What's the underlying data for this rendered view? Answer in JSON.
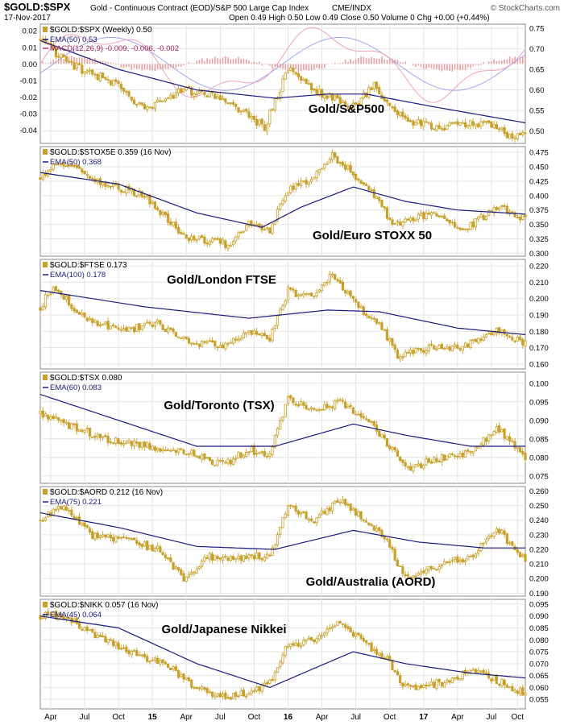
{
  "header": {
    "symbol": "$GOLD:$SPX",
    "description": "Gold - Continuous Contract (EOD)/S&P 500 Large Cap Index",
    "exchange": "CME/INDX",
    "brand": "© StockCharts.com",
    "date": "17-Nov-2017",
    "quote": "Open 0.49  High 0.50  Low 0.49  Close 0.50  Volume 0  Chg +0.00 (+0.44%)"
  },
  "colors": {
    "price": "#c8a02a",
    "ema": "#1a1a80",
    "macd_hist": "#e8a0a0",
    "macd_line": "#f0a0c0",
    "signal_line": "#a0a8e8",
    "grid": "#e4e4e4"
  },
  "x_axis": {
    "labels": [
      "Apr",
      "Jul",
      "Oct",
      "15",
      "Apr",
      "Jul",
      "Oct",
      "16",
      "Apr",
      "Jul",
      "Oct",
      "17",
      "Apr",
      "Jul",
      "Oct"
    ],
    "bold": [
      "15",
      "16",
      "17"
    ]
  },
  "chart_data": [
    {
      "type": "candlestick",
      "legend": "$GOLD:$SPX (Weekly) 0.50",
      "ema_label": "EMA(50) 0.53",
      "macd_label": "MACD(12,26,9) -0.009, -0.006, -0.002",
      "annotation": "Gold/S&P500",
      "ylim": [
        0.47,
        0.76
      ],
      "yticks": [
        "0.75",
        "0.70",
        "0.65",
        "0.60",
        "0.55",
        "0.50"
      ],
      "left_ticks": [
        "0.02",
        "0.01",
        "0.00",
        "-0.01",
        "-0.02",
        "-0.03",
        "-0.04"
      ],
      "anchors": [
        [
          0,
          0.72
        ],
        [
          12,
          0.66
        ],
        [
          28,
          0.62
        ],
        [
          40,
          0.55
        ],
        [
          55,
          0.6
        ],
        [
          70,
          0.58
        ],
        [
          86,
          0.51
        ],
        [
          95,
          0.65
        ],
        [
          105,
          0.6
        ],
        [
          120,
          0.56
        ],
        [
          128,
          0.61
        ],
        [
          139,
          0.53
        ],
        [
          150,
          0.51
        ],
        [
          170,
          0.52
        ],
        [
          180,
          0.49
        ],
        [
          186,
          0.495
        ]
      ],
      "ema": [
        [
          0,
          0.72
        ],
        [
          30,
          0.65
        ],
        [
          60,
          0.6
        ],
        [
          90,
          0.58
        ],
        [
          110,
          0.59
        ],
        [
          125,
          0.59
        ],
        [
          150,
          0.56
        ],
        [
          186,
          0.52
        ]
      ]
    },
    {
      "type": "candlestick",
      "legend": "$GOLD:$STOX5E 0.359 (16 Nov)",
      "ema_label": "EMA(50) 0.368",
      "annotation": "Gold/Euro STOXX 50",
      "ylim": [
        0.295,
        0.485
      ],
      "yticks": [
        "0.475",
        "0.450",
        "0.425",
        "0.400",
        "0.375",
        "0.350",
        "0.325",
        "0.300"
      ],
      "anchors": [
        [
          0,
          0.43
        ],
        [
          8,
          0.46
        ],
        [
          25,
          0.42
        ],
        [
          40,
          0.4
        ],
        [
          55,
          0.33
        ],
        [
          72,
          0.315
        ],
        [
          80,
          0.35
        ],
        [
          88,
          0.34
        ],
        [
          95,
          0.41
        ],
        [
          105,
          0.43
        ],
        [
          112,
          0.47
        ],
        [
          122,
          0.43
        ],
        [
          128,
          0.4
        ],
        [
          135,
          0.35
        ],
        [
          150,
          0.37
        ],
        [
          162,
          0.34
        ],
        [
          175,
          0.38
        ],
        [
          186,
          0.36
        ]
      ],
      "ema": [
        [
          0,
          0.44
        ],
        [
          30,
          0.42
        ],
        [
          60,
          0.37
        ],
        [
          85,
          0.345
        ],
        [
          100,
          0.38
        ],
        [
          120,
          0.415
        ],
        [
          140,
          0.39
        ],
        [
          160,
          0.375
        ],
        [
          186,
          0.368
        ]
      ]
    },
    {
      "type": "candlestick",
      "legend": "$GOLD:$FTSE 0.173",
      "ema_label": "EMA(100) 0.178",
      "annotation": "Gold/London FTSE",
      "ylim": [
        0.157,
        0.224
      ],
      "yticks": [
        "0.220",
        "0.210",
        "0.200",
        "0.190",
        "0.180",
        "0.170",
        "0.160"
      ],
      "anchors": [
        [
          0,
          0.195
        ],
        [
          5,
          0.208
        ],
        [
          15,
          0.19
        ],
        [
          30,
          0.18
        ],
        [
          45,
          0.185
        ],
        [
          55,
          0.175
        ],
        [
          70,
          0.17
        ],
        [
          80,
          0.18
        ],
        [
          88,
          0.175
        ],
        [
          95,
          0.205
        ],
        [
          105,
          0.2
        ],
        [
          112,
          0.215
        ],
        [
          122,
          0.195
        ],
        [
          130,
          0.185
        ],
        [
          137,
          0.165
        ],
        [
          150,
          0.17
        ],
        [
          160,
          0.17
        ],
        [
          175,
          0.18
        ],
        [
          186,
          0.172
        ]
      ],
      "ema": [
        [
          0,
          0.205
        ],
        [
          40,
          0.195
        ],
        [
          80,
          0.188
        ],
        [
          110,
          0.193
        ],
        [
          130,
          0.192
        ],
        [
          160,
          0.182
        ],
        [
          186,
          0.178
        ]
      ]
    },
    {
      "type": "candlestick",
      "legend": "$GOLD:$TSX 0.080",
      "ema_label": "EMA(60) 0.083",
      "annotation": "Gold/Toronto (TSX)",
      "ylim": [
        0.073,
        0.103
      ],
      "yticks": [
        "0.100",
        "0.095",
        "0.090",
        "0.085",
        "0.080",
        "0.075"
      ],
      "anchors": [
        [
          0,
          0.092
        ],
        [
          10,
          0.089
        ],
        [
          25,
          0.085
        ],
        [
          40,
          0.083
        ],
        [
          55,
          0.082
        ],
        [
          70,
          0.078
        ],
        [
          80,
          0.082
        ],
        [
          88,
          0.081
        ],
        [
          95,
          0.096
        ],
        [
          105,
          0.092
        ],
        [
          115,
          0.095
        ],
        [
          125,
          0.09
        ],
        [
          133,
          0.084
        ],
        [
          140,
          0.077
        ],
        [
          155,
          0.08
        ],
        [
          165,
          0.081
        ],
        [
          175,
          0.088
        ],
        [
          186,
          0.08
        ]
      ],
      "ema": [
        [
          0,
          0.097
        ],
        [
          30,
          0.09
        ],
        [
          60,
          0.083
        ],
        [
          90,
          0.083
        ],
        [
          120,
          0.089
        ],
        [
          140,
          0.086
        ],
        [
          165,
          0.083
        ],
        [
          186,
          0.083
        ]
      ]
    },
    {
      "type": "candlestick",
      "legend": "$GOLD:$AORD 0.212 (16 Nov)",
      "ema_label": "EMA(75) 0.221",
      "annotation": "Gold/Australia (AORD)",
      "ylim": [
        0.188,
        0.263
      ],
      "yticks": [
        "0.260",
        "0.250",
        "0.240",
        "0.230",
        "0.220",
        "0.210",
        "0.200",
        "0.190"
      ],
      "anchors": [
        [
          0,
          0.24
        ],
        [
          8,
          0.25
        ],
        [
          20,
          0.23
        ],
        [
          35,
          0.225
        ],
        [
          45,
          0.22
        ],
        [
          55,
          0.2
        ],
        [
          65,
          0.215
        ],
        [
          75,
          0.215
        ],
        [
          88,
          0.215
        ],
        [
          95,
          0.25
        ],
        [
          105,
          0.24
        ],
        [
          115,
          0.255
        ],
        [
          125,
          0.24
        ],
        [
          133,
          0.225
        ],
        [
          140,
          0.2
        ],
        [
          155,
          0.21
        ],
        [
          165,
          0.215
        ],
        [
          175,
          0.235
        ],
        [
          186,
          0.212
        ]
      ],
      "ema": [
        [
          0,
          0.245
        ],
        [
          30,
          0.235
        ],
        [
          60,
          0.222
        ],
        [
          90,
          0.22
        ],
        [
          120,
          0.233
        ],
        [
          145,
          0.225
        ],
        [
          170,
          0.221
        ],
        [
          186,
          0.221
        ]
      ]
    },
    {
      "type": "candlestick",
      "legend": "$GOLD:$NIKK 0.057 (16 Nov)",
      "ema_label": "EMA(45) 0.064",
      "annotation": "Gold/Japanese Nikkei",
      "ylim": [
        0.051,
        0.097
      ],
      "yticks": [
        "0.095",
        "0.090",
        "0.085",
        "0.080",
        "0.075",
        "0.070",
        "0.065",
        "0.060",
        "0.055"
      ],
      "anchors": [
        [
          0,
          0.09
        ],
        [
          10,
          0.09
        ],
        [
          20,
          0.082
        ],
        [
          35,
          0.075
        ],
        [
          50,
          0.068
        ],
        [
          60,
          0.06
        ],
        [
          70,
          0.056
        ],
        [
          80,
          0.058
        ],
        [
          88,
          0.062
        ],
        [
          95,
          0.078
        ],
        [
          105,
          0.08
        ],
        [
          115,
          0.088
        ],
        [
          125,
          0.078
        ],
        [
          133,
          0.072
        ],
        [
          140,
          0.06
        ],
        [
          155,
          0.062
        ],
        [
          165,
          0.067
        ],
        [
          175,
          0.063
        ],
        [
          186,
          0.057
        ]
      ],
      "ema": [
        [
          0,
          0.09
        ],
        [
          30,
          0.085
        ],
        [
          60,
          0.07
        ],
        [
          88,
          0.06
        ],
        [
          105,
          0.068
        ],
        [
          120,
          0.075
        ],
        [
          140,
          0.07
        ],
        [
          165,
          0.066
        ],
        [
          186,
          0.064
        ]
      ]
    }
  ]
}
